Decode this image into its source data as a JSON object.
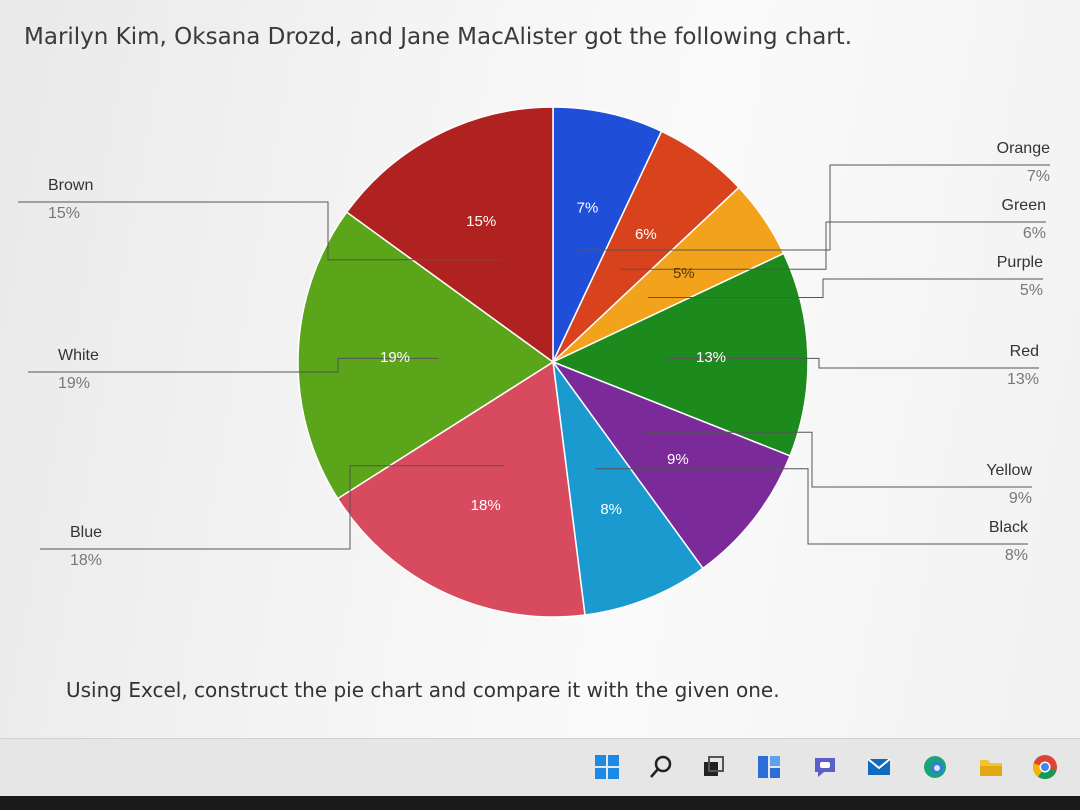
{
  "heading": "Marilyn Kim, Oksana Drozd, and Jane MacAlister got the following chart.",
  "instruction": "Using Excel, construct the pie chart and compare it with the given one.",
  "chart_data": {
    "type": "pie",
    "title": "",
    "slices": [
      {
        "category": "Orange",
        "value": 7,
        "label": "7%",
        "color": "#1f4fd8"
      },
      {
        "category": "Green",
        "value": 6,
        "label": "6%",
        "color": "#d8431e"
      },
      {
        "category": "Purple",
        "value": 5,
        "label": "5%",
        "color": "#f2a31b"
      },
      {
        "category": "Red",
        "value": 13,
        "label": "13%",
        "color": "#1c8a1c"
      },
      {
        "category": "Yellow",
        "value": 9,
        "label": "9%",
        "color": "#7b2a9a"
      },
      {
        "category": "Black",
        "value": 8,
        "label": "8%",
        "color": "#1b9ad0"
      },
      {
        "category": "Blue",
        "value": 18,
        "label": "18%",
        "color": "#d84a5e"
      },
      {
        "category": "White",
        "value": 19,
        "label": "19%",
        "color": "#5aa51a"
      },
      {
        "category": "Brown",
        "value": 15,
        "label": "15%",
        "color": "#b0221f"
      }
    ],
    "start_angle_deg": 0,
    "direction": "clockwise",
    "category_labels": "outside with leader lines"
  },
  "taskbar": {
    "icons": [
      "windows-start-icon",
      "search-icon",
      "task-view-icon",
      "widgets-icon",
      "teams-chat-icon",
      "mail-icon",
      "edge-icon",
      "file-explorer-icon",
      "chrome-icon"
    ]
  }
}
